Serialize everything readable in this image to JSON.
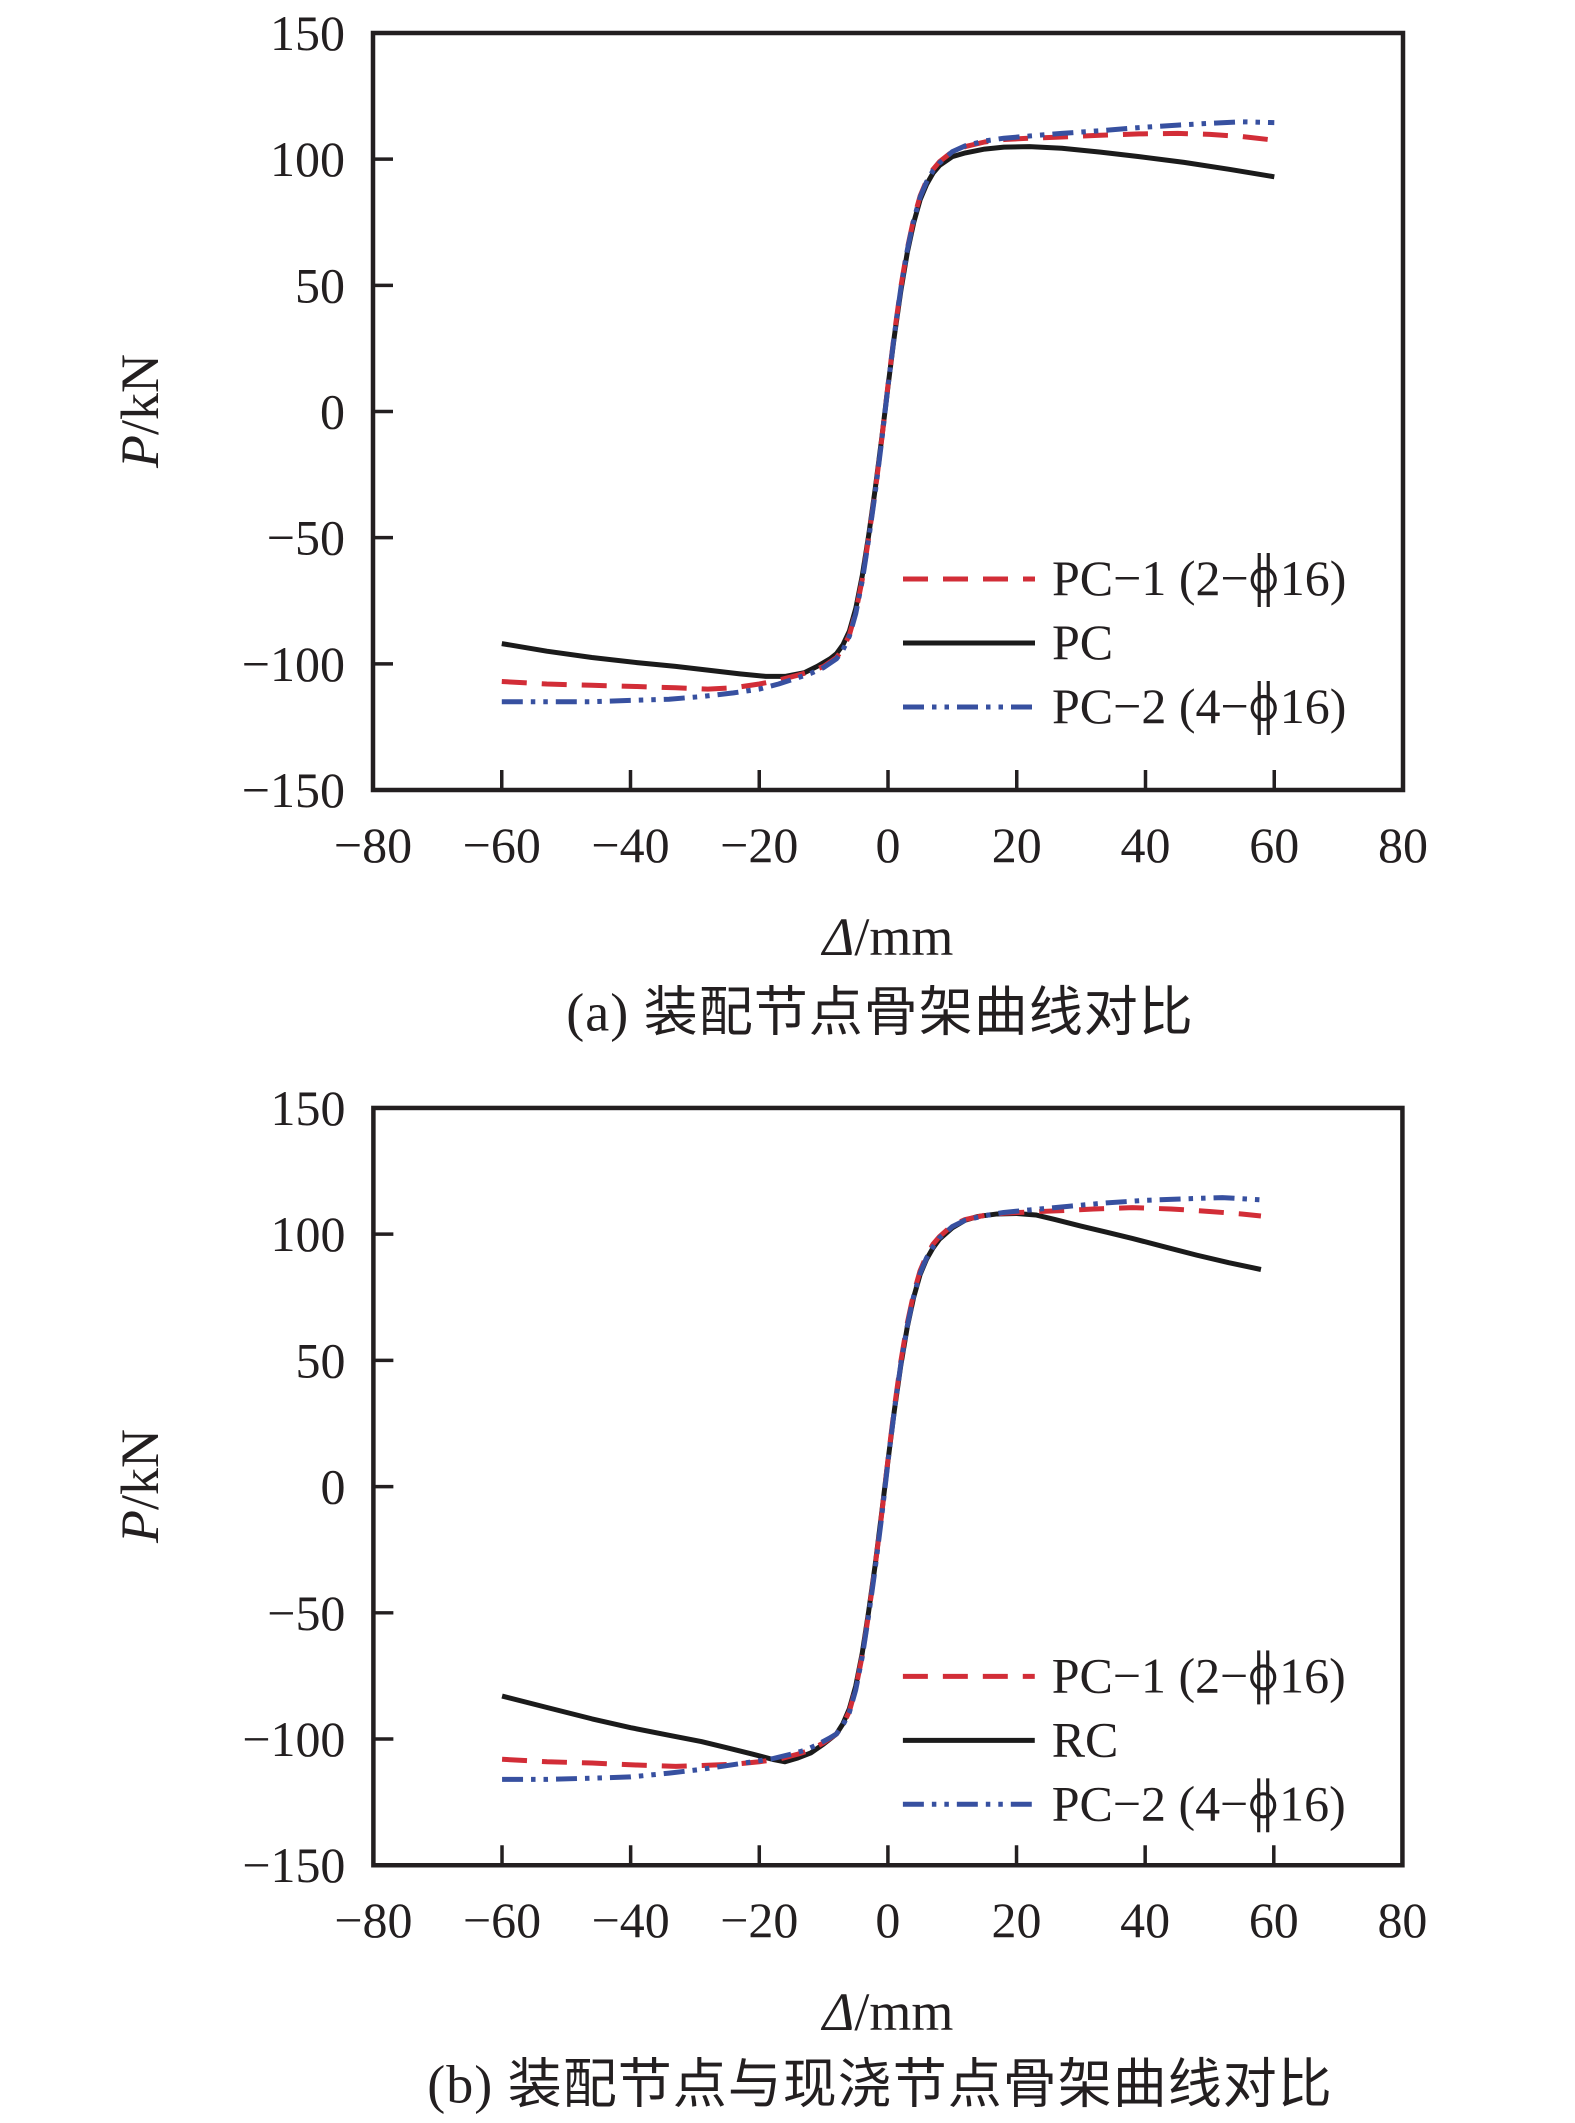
{
  "figure": {
    "background": "#ffffff"
  },
  "colors": {
    "axis": "#231f20",
    "text": "#231f20",
    "pc1_red": "#d22d37",
    "pc_black": "#1b1b1b",
    "pc2_blue": "#3750a0"
  },
  "chart_data": [
    {
      "type": "line",
      "caption": "(a) 装配节点骨架曲线对比",
      "xlabel_italic": "Δ",
      "xlabel_rest": "/mm",
      "ylabel_italic": "P",
      "ylabel_rest": "/kN",
      "xlim": [
        -80,
        80
      ],
      "ylim": [
        -150,
        150
      ],
      "x_ticks": [
        -80,
        -60,
        -40,
        -20,
        0,
        20,
        40,
        60,
        80
      ],
      "y_ticks": [
        -150,
        -100,
        -50,
        0,
        50,
        100,
        150
      ],
      "grid": false,
      "legend_position": "inside-lower-right",
      "series": [
        {
          "name": "PC-1",
          "label_prefix": "PC−1 (2−",
          "symbol": "rebar-diameter-symbol",
          "label_suffix": "16)",
          "color_key": "pc1_red",
          "style": "dashed",
          "points": [
            [
              -60,
              -107
            ],
            [
              -53,
              -108
            ],
            [
              -46,
              -108.5
            ],
            [
              -39,
              -109
            ],
            [
              -33,
              -109.5
            ],
            [
              -28,
              -110
            ],
            [
              -24,
              -109.5
            ],
            [
              -20,
              -108
            ],
            [
              -17,
              -106.5
            ],
            [
              -14,
              -104.5
            ],
            [
              -12,
              -103
            ],
            [
              -10,
              -101
            ],
            [
              -8,
              -97.5
            ],
            [
              -7,
              -94
            ],
            [
              -6,
              -88.5
            ],
            [
              -5,
              -79.5
            ],
            [
              -4,
              -66.5
            ],
            [
              -3,
              -50
            ],
            [
              -2,
              -32
            ],
            [
              -1,
              -11.5
            ],
            [
              0,
              10.5
            ],
            [
              1,
              31
            ],
            [
              2,
              49.5
            ],
            [
              3,
              64.5
            ],
            [
              4,
              76.5
            ],
            [
              5,
              85.5
            ],
            [
              6,
              91.5
            ],
            [
              7,
              96
            ],
            [
              8,
              99
            ],
            [
              10,
              103
            ],
            [
              12,
              105
            ],
            [
              15,
              106.8
            ],
            [
              18,
              107.8
            ],
            [
              22,
              108.3
            ],
            [
              27,
              108.8
            ],
            [
              33,
              109.5
            ],
            [
              39,
              110
            ],
            [
              45,
              110.2
            ],
            [
              50,
              109.8
            ],
            [
              55,
              109
            ],
            [
              60,
              107.5
            ]
          ]
        },
        {
          "name": "PC",
          "label_prefix": "PC",
          "symbol": null,
          "label_suffix": "",
          "color_key": "pc_black",
          "style": "solid",
          "points": [
            [
              -60,
              -92
            ],
            [
              -53,
              -95
            ],
            [
              -46,
              -97.5
            ],
            [
              -39,
              -99.5
            ],
            [
              -33,
              -101
            ],
            [
              -28,
              -102.5
            ],
            [
              -23,
              -104
            ],
            [
              -19,
              -105
            ],
            [
              -16,
              -105
            ],
            [
              -13,
              -103.5
            ],
            [
              -11,
              -101
            ],
            [
              -9,
              -98
            ],
            [
              -8,
              -96
            ],
            [
              -7,
              -92.5
            ],
            [
              -6,
              -87
            ],
            [
              -5,
              -78
            ],
            [
              -4,
              -65
            ],
            [
              -3,
              -49
            ],
            [
              -2,
              -31
            ],
            [
              -1,
              -11
            ],
            [
              0,
              10
            ],
            [
              1,
              30
            ],
            [
              2,
              48
            ],
            [
              3,
              63
            ],
            [
              4,
              75
            ],
            [
              5,
              84
            ],
            [
              6,
              90
            ],
            [
              7,
              94.5
            ],
            [
              8,
              97.5
            ],
            [
              10,
              101
            ],
            [
              12,
              102.5
            ],
            [
              15,
              104
            ],
            [
              18,
              104.8
            ],
            [
              22,
              105
            ],
            [
              27,
              104.3
            ],
            [
              33,
              102.8
            ],
            [
              39,
              101
            ],
            [
              46,
              98.7
            ],
            [
              53,
              96
            ],
            [
              60,
              93
            ]
          ]
        },
        {
          "name": "PC-2",
          "label_prefix": "PC−2 (4−",
          "symbol": "rebar-diameter-symbol",
          "label_suffix": "16)",
          "color_key": "pc2_blue",
          "style": "dash-dot-dot",
          "points": [
            [
              -60,
              -115
            ],
            [
              -53,
              -115
            ],
            [
              -46,
              -115
            ],
            [
              -40,
              -114.5
            ],
            [
              -34,
              -114
            ],
            [
              -29,
              -113
            ],
            [
              -24,
              -111.5
            ],
            [
              -20,
              -110
            ],
            [
              -17,
              -108
            ],
            [
              -14,
              -105.5
            ],
            [
              -12,
              -103.8
            ],
            [
              -10,
              -101.5
            ],
            [
              -8,
              -98
            ],
            [
              -7,
              -94.5
            ],
            [
              -6,
              -89
            ],
            [
              -5,
              -80
            ],
            [
              -4,
              -67
            ],
            [
              -3,
              -50.5
            ],
            [
              -2,
              -32.5
            ],
            [
              -1,
              -12
            ],
            [
              0,
              10
            ],
            [
              1,
              30.5
            ],
            [
              2,
              49
            ],
            [
              3,
              64
            ],
            [
              4,
              76
            ],
            [
              5,
              85
            ],
            [
              6,
              91
            ],
            [
              7,
              95.5
            ],
            [
              8,
              98.5
            ],
            [
              10,
              103
            ],
            [
              12,
              105.3
            ],
            [
              15,
              107.2
            ],
            [
              18,
              108.3
            ],
            [
              22,
              109.2
            ],
            [
              27,
              110.2
            ],
            [
              33,
              111.3
            ],
            [
              39,
              112.5
            ],
            [
              45,
              113.5
            ],
            [
              50,
              114.2
            ],
            [
              55,
              114.8
            ],
            [
              60,
              114.5
            ]
          ]
        }
      ]
    },
    {
      "type": "line",
      "caption": "(b) 装配节点与现浇节点骨架曲线对比",
      "xlabel_italic": "Δ",
      "xlabel_rest": "/mm",
      "ylabel_italic": "P",
      "ylabel_rest": "/kN",
      "xlim": [
        -80,
        80
      ],
      "ylim": [
        -150,
        150
      ],
      "x_ticks": [
        -80,
        -60,
        -40,
        -20,
        0,
        20,
        40,
        60,
        80
      ],
      "y_ticks": [
        -150,
        -100,
        -50,
        0,
        50,
        100,
        150
      ],
      "grid": false,
      "legend_position": "inside-lower-right",
      "series": [
        {
          "name": "PC-1",
          "label_prefix": "PC−1 (2−",
          "symbol": "rebar-diameter-symbol",
          "label_suffix": "16)",
          "color_key": "pc1_red",
          "style": "dashed",
          "points": [
            [
              -60,
              -108
            ],
            [
              -53,
              -109
            ],
            [
              -46,
              -109.5
            ],
            [
              -39,
              -110.3
            ],
            [
              -33,
              -110.8
            ],
            [
              -28,
              -110.4
            ],
            [
              -24,
              -110
            ],
            [
              -20,
              -109
            ],
            [
              -17,
              -108
            ],
            [
              -14,
              -106
            ],
            [
              -12,
              -104.3
            ],
            [
              -10,
              -101.5
            ],
            [
              -8,
              -98
            ],
            [
              -7,
              -94.5
            ],
            [
              -6,
              -89
            ],
            [
              -5,
              -80
            ],
            [
              -4,
              -67
            ],
            [
              -3,
              -50.5
            ],
            [
              -2,
              -32
            ],
            [
              -1,
              -11.5
            ],
            [
              0,
              10.5
            ],
            [
              1,
              31
            ],
            [
              2,
              49.5
            ],
            [
              3,
              64.5
            ],
            [
              4,
              76.5
            ],
            [
              5,
              85.5
            ],
            [
              6,
              91.5
            ],
            [
              7,
              96
            ],
            [
              8,
              99
            ],
            [
              10,
              103.5
            ],
            [
              12,
              105.8
            ],
            [
              15,
              107.5
            ],
            [
              18,
              108.3
            ],
            [
              22,
              108.8
            ],
            [
              27,
              109.3
            ],
            [
              32,
              110
            ],
            [
              38,
              110.5
            ],
            [
              44,
              110
            ],
            [
              50,
              109
            ],
            [
              55,
              108
            ],
            [
              58,
              107.2
            ]
          ]
        },
        {
          "name": "RC",
          "label_prefix": "RC",
          "symbol": null,
          "label_suffix": "",
          "color_key": "pc_black",
          "style": "solid",
          "points": [
            [
              -60,
              -83
            ],
            [
              -53,
              -87.5
            ],
            [
              -46,
              -92
            ],
            [
              -40,
              -95.5
            ],
            [
              -34,
              -98.5
            ],
            [
              -29,
              -101
            ],
            [
              -25,
              -103.5
            ],
            [
              -21,
              -106
            ],
            [
              -18,
              -108
            ],
            [
              -16,
              -109
            ],
            [
              -14,
              -107.5
            ],
            [
              -12,
              -105.5
            ],
            [
              -10,
              -102
            ],
            [
              -8,
              -98
            ],
            [
              -7,
              -94
            ],
            [
              -6,
              -88
            ],
            [
              -5,
              -79
            ],
            [
              -4,
              -66
            ],
            [
              -3,
              -49.5
            ],
            [
              -2,
              -31.5
            ],
            [
              -1,
              -11
            ],
            [
              0,
              10
            ],
            [
              1,
              30
            ],
            [
              2,
              48
            ],
            [
              3,
              63
            ],
            [
              4,
              75
            ],
            [
              5,
              84
            ],
            [
              6,
              90
            ],
            [
              7,
              94.5
            ],
            [
              8,
              98
            ],
            [
              10,
              102.5
            ],
            [
              12,
              105.5
            ],
            [
              14,
              107
            ],
            [
              17,
              108
            ],
            [
              20,
              108.2
            ],
            [
              23,
              107.6
            ],
            [
              26,
              105.8
            ],
            [
              30,
              103.2
            ],
            [
              34,
              100.8
            ],
            [
              38,
              98.3
            ],
            [
              43,
              95
            ],
            [
              48,
              91.7
            ],
            [
              53,
              88.7
            ],
            [
              58,
              86
            ]
          ]
        },
        {
          "name": "PC-2",
          "label_prefix": "PC−2 (4−",
          "symbol": "rebar-diameter-symbol",
          "label_suffix": "16)",
          "color_key": "pc2_blue",
          "style": "dash-dot-dot",
          "points": [
            [
              -60,
              -116
            ],
            [
              -53,
              -116
            ],
            [
              -46,
              -115.5
            ],
            [
              -40,
              -115
            ],
            [
              -34,
              -113.5
            ],
            [
              -29,
              -112
            ],
            [
              -25,
              -110.5
            ],
            [
              -21,
              -109
            ],
            [
              -18,
              -107.8
            ],
            [
              -15,
              -106
            ],
            [
              -13,
              -104.5
            ],
            [
              -11,
              -102.3
            ],
            [
              -9,
              -99.5
            ],
            [
              -8,
              -98
            ],
            [
              -7,
              -94.5
            ],
            [
              -6,
              -89.5
            ],
            [
              -5,
              -80.5
            ],
            [
              -4,
              -67.5
            ],
            [
              -3,
              -51
            ],
            [
              -2,
              -33
            ],
            [
              -1,
              -12.5
            ],
            [
              0,
              9.5
            ],
            [
              1,
              30
            ],
            [
              2,
              48.5
            ],
            [
              3,
              63.5
            ],
            [
              4,
              75.5
            ],
            [
              5,
              84.5
            ],
            [
              6,
              90.5
            ],
            [
              7,
              95
            ],
            [
              8,
              98.5
            ],
            [
              10,
              103
            ],
            [
              12,
              105.5
            ],
            [
              15,
              107.3
            ],
            [
              18,
              108.6
            ],
            [
              22,
              109.6
            ],
            [
              28,
              111
            ],
            [
              34,
              112.4
            ],
            [
              40,
              113.4
            ],
            [
              46,
              114
            ],
            [
              52,
              114.5
            ],
            [
              58,
              113.6
            ]
          ]
        }
      ]
    }
  ]
}
